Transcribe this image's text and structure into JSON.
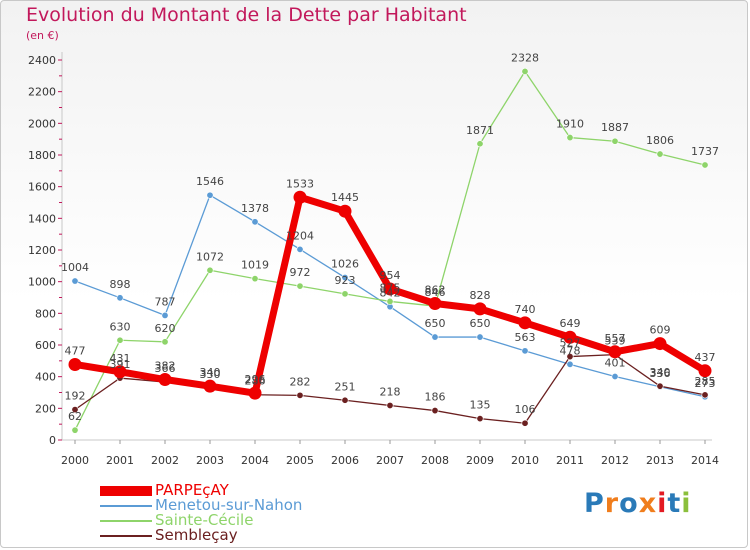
{
  "header": {
    "title": "Evolution du Montant de la Dette par Habitant",
    "subtitle": "(en €)"
  },
  "brand": {
    "text": "Proxiti",
    "colors": [
      "#2a7ab8",
      "#f07d1c",
      "#2a7ab8",
      "#f07d1c",
      "#e31b23",
      "#2a7ab8",
      "#8bbf3c"
    ]
  },
  "chart_data": {
    "type": "line",
    "title": "Evolution du Montant de la Dette par Habitant",
    "subtitle": "(en €)",
    "xlabel": "",
    "ylabel": "",
    "x": [
      "2000",
      "2001",
      "2002",
      "2003",
      "2004",
      "2005",
      "2006",
      "2007",
      "2008",
      "2009",
      "2010",
      "2011",
      "2012",
      "2013",
      "2014"
    ],
    "ylim": [
      0,
      2400
    ],
    "yticks": [
      0,
      200,
      400,
      600,
      800,
      1000,
      1200,
      1400,
      1600,
      1800,
      2000,
      2200,
      2400
    ],
    "grid": false,
    "legend": "bottom-left",
    "series": [
      {
        "name": "PARPEçAY",
        "color": "#ee0000",
        "values": [
          477,
          431,
          382,
          340,
          296,
          1533,
          1445,
          954,
          862,
          828,
          740,
          649,
          557,
          609,
          437
        ],
        "labels": [
          "477",
          "431",
          "382",
          "340",
          "296",
          "1533",
          "1445",
          "954",
          "862",
          "828",
          "740",
          "649",
          "557",
          "609",
          "437"
        ]
      },
      {
        "name": "Menetou-sur-Nahon",
        "color": "#5b9bd5",
        "values": [
          1004,
          898,
          787,
          1546,
          1378,
          1204,
          1026,
          842,
          650,
          650,
          563,
          478,
          401,
          336,
          273
        ],
        "labels": [
          "1004",
          "898",
          "787",
          "1546",
          "1378",
          "1204",
          "1026",
          "842",
          "650",
          "650",
          "563",
          "478",
          "401",
          "336",
          "273"
        ]
      },
      {
        "name": "Sainte-Cécile",
        "color": "#8ed46a",
        "values": [
          62,
          630,
          620,
          1072,
          1019,
          972,
          923,
          875,
          846,
          1871,
          2328,
          1910,
          1887,
          1806,
          1737
        ],
        "labels": [
          "62",
          "630",
          "620",
          "1072",
          "1019",
          "972",
          "923",
          "875",
          "846",
          "1871",
          "2328",
          "1910",
          "1887",
          "1806",
          "1737"
        ]
      },
      {
        "name": "Sembleçay",
        "color": "#6b2020",
        "values": [
          192,
          391,
          366,
          330,
          286,
          282,
          251,
          218,
          186,
          135,
          106,
          527,
          539,
          340,
          285
        ],
        "labels": [
          "192",
          "391",
          "366",
          "330",
          "286",
          "282",
          "251",
          "218",
          "186",
          "135",
          "106",
          "527",
          "539",
          "340",
          "285"
        ]
      }
    ]
  }
}
